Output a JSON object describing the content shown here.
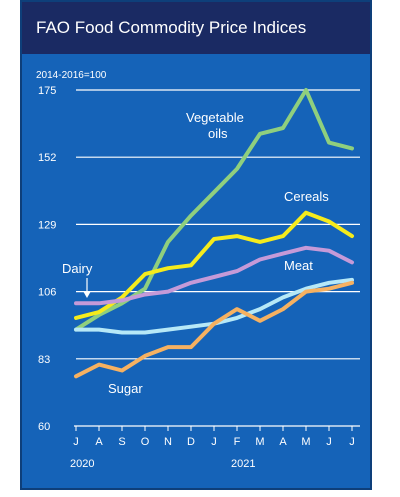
{
  "title": "FAO Food Commodity Price Indices",
  "colors": {
    "background": "#1563b8",
    "title_bar": "#1a2a63",
    "gridline": "#ffffff"
  },
  "chart_data": {
    "type": "line",
    "title": "FAO Food Commodity Price Indices",
    "subtitle": "2014-2016=100",
    "xlabel": "",
    "ylabel": "",
    "x": [
      "J",
      "A",
      "S",
      "O",
      "N",
      "D",
      "J",
      "F",
      "M",
      "A",
      "M",
      "J",
      "J"
    ],
    "year_labels": [
      {
        "label": "2020",
        "index": 0
      },
      {
        "label": "2021",
        "index": 7
      }
    ],
    "ylim": [
      60,
      175
    ],
    "yticks": [
      60,
      83,
      106,
      129,
      152,
      175
    ],
    "grid": true,
    "series": [
      {
        "name": "Vegetable oils",
        "color": "#8fcf7e",
        "values": [
          93,
          98,
          102,
          107,
          123,
          132,
          140,
          148,
          160,
          162,
          175,
          157,
          155
        ]
      },
      {
        "name": "Cereals",
        "color": "#f5eb1c",
        "values": [
          97,
          99,
          104,
          112,
          114,
          115,
          124,
          125,
          123,
          125,
          133,
          130,
          125
        ]
      },
      {
        "name": "Meat",
        "color": "#c59ad8",
        "values": [
          102,
          102,
          103,
          105,
          106,
          109,
          111,
          113,
          117,
          119,
          121,
          120,
          116
        ]
      },
      {
        "name": "Dairy",
        "color": "#b6e8f7",
        "values": [
          93,
          93,
          92,
          92,
          93,
          94,
          95,
          97,
          100,
          104,
          107,
          109,
          110
        ]
      },
      {
        "name": "Sugar",
        "color": "#f6b161",
        "values": [
          77,
          81,
          79,
          84,
          87,
          87,
          95,
          100,
          96,
          100,
          106,
          107,
          109
        ]
      }
    ],
    "annotations": [
      {
        "text": "Vegetable",
        "series": "Vegetable oils"
      },
      {
        "text": "oils",
        "series": "Vegetable oils"
      },
      {
        "text": "Cereals",
        "series": "Cereals"
      },
      {
        "text": "Meat",
        "series": "Meat"
      },
      {
        "text": "Dairy",
        "series": "Dairy"
      },
      {
        "text": "Sugar",
        "series": "Sugar"
      }
    ]
  }
}
